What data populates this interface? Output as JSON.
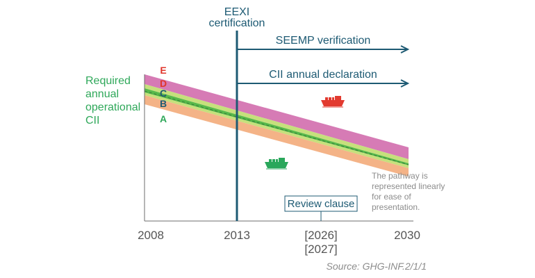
{
  "colors": {
    "navy": "#1d5a73",
    "band_e": "#d67bb5",
    "band_d": "#c6e07c",
    "band_c": "#57b94a",
    "band_a": "#f4b387",
    "green_text": "#2fa85a",
    "red_text": "#e0352b",
    "grey_text": "#8c8c8c",
    "ship_red": "#e23a2f",
    "ship_green": "#2aa75b"
  },
  "labels": {
    "eexi_line1": "EEXI",
    "eexi_line2": "certification",
    "seemp": "SEEMP verification",
    "cii_declaration": "CII annual declaration",
    "required_1": "Required",
    "required_2": "annual",
    "required_3": "operational",
    "required_4": "CII",
    "grade_e": "E",
    "grade_d": "D",
    "grade_c": "C",
    "grade_b": "B",
    "grade_a": "A",
    "review_clause": "Review clause",
    "note_1": "The pathway is",
    "note_2": "represented linearly",
    "note_3": "for ease of",
    "note_4": "presentation.",
    "source": "Source: GHG-INF.2/1/1"
  },
  "x_axis": {
    "ticks": [
      "2008",
      "2013",
      "[2026]",
      "[2027]",
      "2030"
    ]
  },
  "icons": {
    "ship_top": "cargo-ship-icon",
    "ship_bottom": "cargo-ship-icon"
  }
}
